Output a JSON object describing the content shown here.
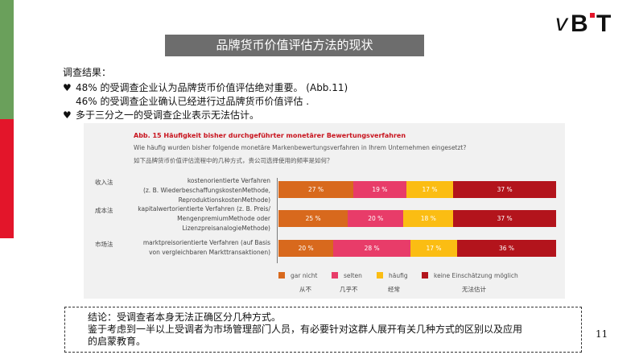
{
  "logo": {
    "text": "vB·T",
    "colors": [
      "#111111",
      "#e3152a"
    ]
  },
  "title": "品牌货币价值评估方法的现状",
  "results": {
    "heading": "调查结果：",
    "items": [
      "48% 的受调查企业认为品牌货币价值评估绝对重要。 (Abb.11)",
      "46% 的受调查企业确认已经进行过品牌货币价值评估 .",
      "多于三分之一的受调查企业表示无法估计。"
    ],
    "bullet_icon": "heart-icon"
  },
  "figure": {
    "title": "Abb. 15 Häufigkeit bisher durchgeführter monetärer Bewertungsverfahren",
    "question_de": "Wie häufig wurden bisher folgende monetäre Markenbewertungsverfahren in Ihrem Unternehmen eingesetzt?",
    "question_cn": "如下品牌货币价值评估流程中的几种方式，贵公司选择使用的频率是如何？"
  },
  "chart_data": {
    "type": "bar",
    "orientation": "horizontal",
    "stacked": true,
    "categories": [
      "kostenorientierte Verfahren (z. B. WiederbeschaffungskostenMethode, ReproduktionskostenMethode)",
      "kapitalwertorientierte Verfahren (z. B. Preis/ MengenpremiumMethode oder LizenzpreisanalogieMethode)",
      "marktpreisorientierte Verfahren (auf Basis von vergleichbaren Markttransaktionen)"
    ],
    "category_lines": [
      [
        "kostenorientierte Verfahren",
        "(z. B. WiederbeschaffungskostenMethode,",
        "ReproduktionskostenMethode)"
      ],
      [
        "kapitalwertorientierte Verfahren (z. B. Preis/",
        "MengenpremiumMethode oder",
        "LizenzpreisanalogieMethode)"
      ],
      [
        "marktpreisorientierte Verfahren (auf Basis",
        "von vergleichbaren Markttransaktionen)"
      ]
    ],
    "category_tags_cn": [
      "收入法",
      "成本法",
      "市场法"
    ],
    "series": [
      {
        "name": "gar nicht",
        "name_cn": "从不",
        "color": "#d8691d",
        "values": [
          27,
          25,
          20
        ]
      },
      {
        "name": "selten",
        "name_cn": "几乎不",
        "color": "#e83c69",
        "values": [
          19,
          20,
          28
        ]
      },
      {
        "name": "häufig",
        "name_cn": "经常",
        "color": "#fbbd13",
        "values": [
          17,
          18,
          17
        ]
      },
      {
        "name": "keine Einschätzung möglich",
        "name_cn": "无法估计",
        "color": "#b3141c",
        "values": [
          37,
          37,
          36
        ]
      }
    ],
    "unit": "%",
    "xlim": [
      0,
      100
    ],
    "legend_position": "bottom"
  },
  "conclusion": {
    "lines": [
      "结论：受调查者本身无法正确区分几种方式。",
      "鉴于考虑到一半以上受调者为市场管理部门人员，有必要针对这群人展开有关几种方式的区别以及应用",
      "的启蒙教育。"
    ]
  },
  "page_number": "11"
}
